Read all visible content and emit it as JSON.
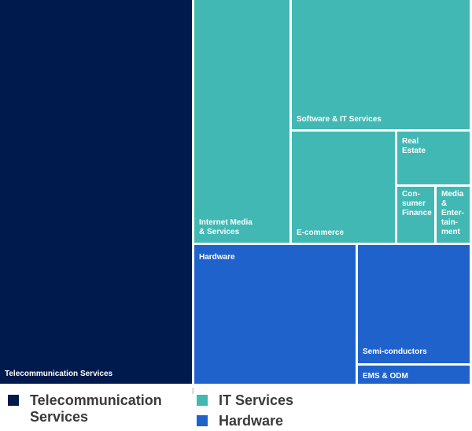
{
  "chart_data": {
    "type": "treemap",
    "title": "",
    "colors": {
      "Telecommunication Services": "#001a4d",
      "IT Services": "#41b8b3",
      "Hardware": "#1f62cc"
    },
    "tiles": [
      {
        "label": "Telecommunication Services",
        "group": "Telecommunication Services"
      },
      {
        "label": "Internet Media\n& Services",
        "group": "IT Services"
      },
      {
        "label": "Software & IT Services",
        "group": "IT Services"
      },
      {
        "label": "E-commerce",
        "group": "IT Services"
      },
      {
        "label": "Real\nEstate",
        "group": "IT Services"
      },
      {
        "label": "Con-\nsumer\nFinance",
        "group": "IT Services"
      },
      {
        "label": "Media\n&\nEnter-\ntain-\nment",
        "group": "IT Services"
      },
      {
        "label": "Hardware",
        "group": "Hardware"
      },
      {
        "label": "Semi-conductors",
        "group": "Hardware"
      },
      {
        "label": "EMS & ODM",
        "group": "Hardware"
      }
    ],
    "legend": {
      "position": "bottom",
      "items": [
        {
          "label": "Telecommunication\nServices",
          "group": "Telecommunication Services"
        },
        {
          "label": "IT Services",
          "group": "IT Services"
        },
        {
          "label": "Hardware",
          "group": "Hardware"
        }
      ]
    }
  }
}
